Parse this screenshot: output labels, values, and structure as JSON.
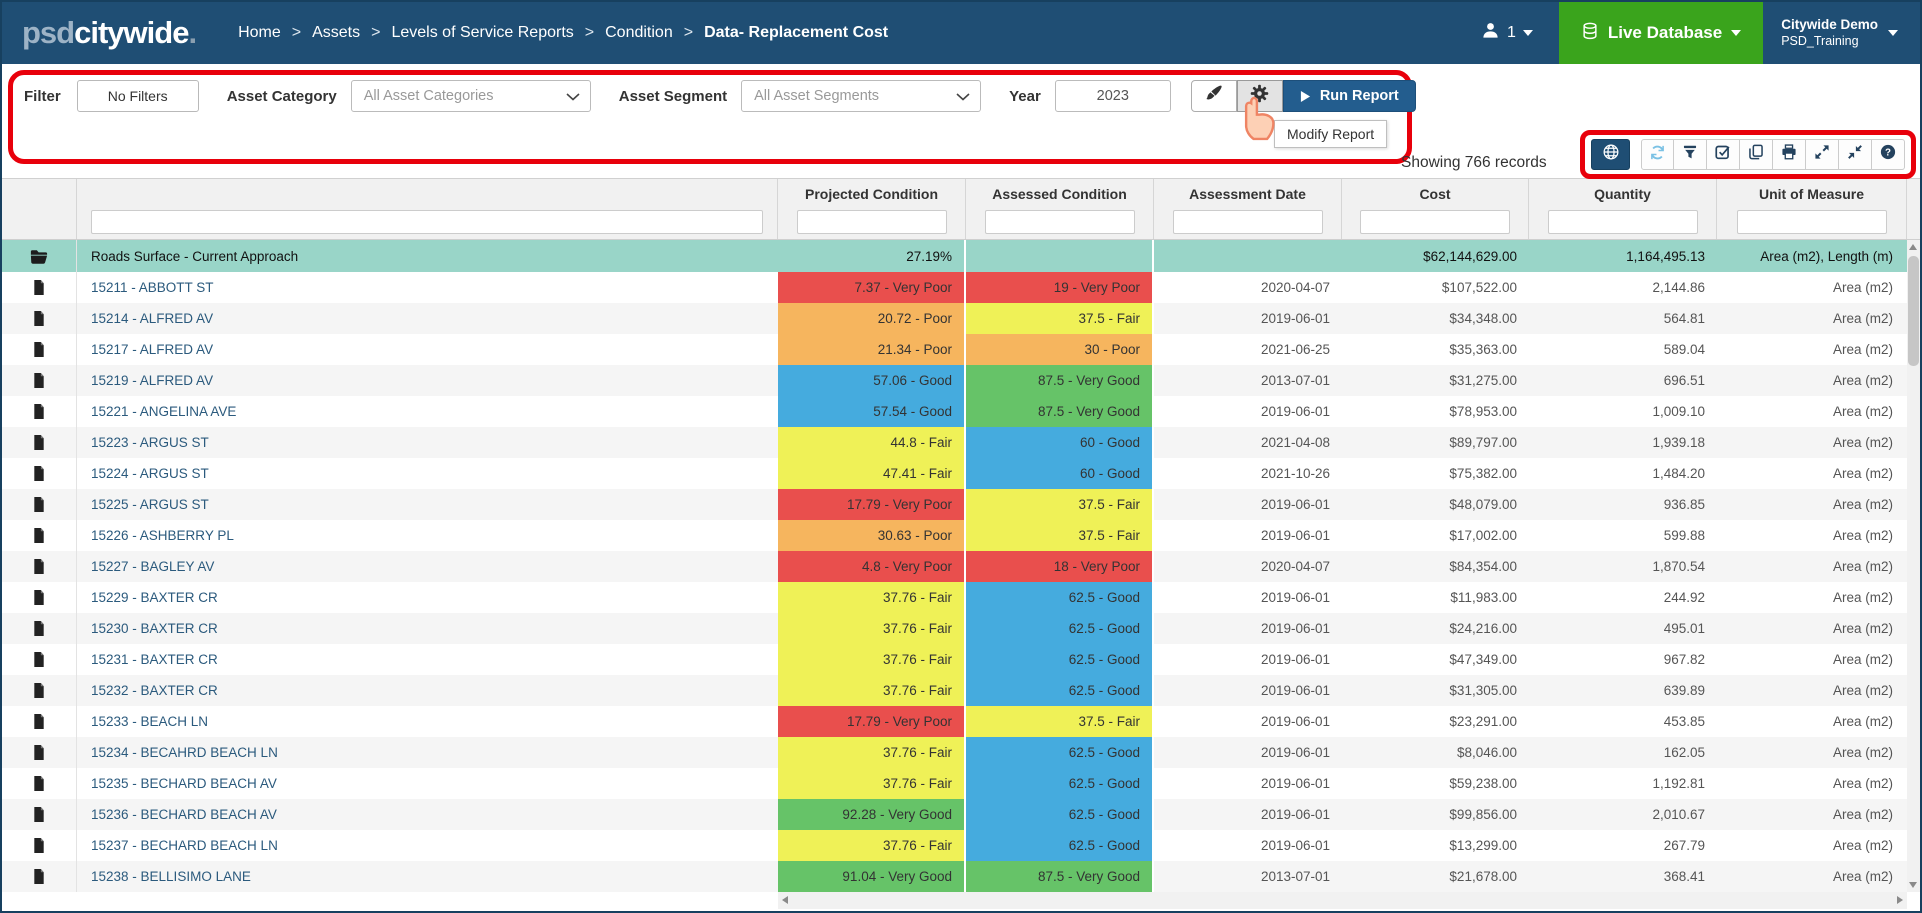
{
  "navbar": {
    "logo_prefix": "psd",
    "logo_main": "citywide",
    "logo_dot": ".",
    "breadcrumbs": [
      "Home",
      "Assets",
      "Levels of Service Reports",
      "Condition",
      "Data- Replacement Cost"
    ],
    "user_count": "1",
    "live_database_label": "Live Database",
    "account_name": "Citywide Demo",
    "account_sub": "PSD_Training"
  },
  "filter_bar": {
    "filter_label": "Filter",
    "no_filters_button": "No Filters",
    "asset_category_label": "Asset Category",
    "asset_category_value": "All Asset Categories",
    "asset_segment_label": "Asset Segment",
    "asset_segment_value": "All Asset Segments",
    "year_label": "Year",
    "year_value": "2023",
    "run_report_label": "Run Report",
    "modify_tooltip": "Modify Report"
  },
  "status": {
    "showing_records": "Showing 766 records"
  },
  "toolbar": {
    "buttons": [
      "globe",
      "refresh",
      "filter",
      "select-check",
      "copy",
      "print",
      "expand",
      "compress",
      "help"
    ]
  },
  "table": {
    "columns": [
      "Projected Condition",
      "Assessed Condition",
      "Assessment Date",
      "Cost",
      "Quantity",
      "Unit of Measure"
    ],
    "condition_colors": {
      "very-poor": "#e94f4d",
      "poor": "#f6b55e",
      "fair": "#eff157",
      "good": "#45abde",
      "very-good": "#66c368"
    },
    "summary_row": {
      "name": "Roads Surface - Current Approach",
      "projected": "27.19%",
      "assessed": "",
      "date": "",
      "cost": "$62,144,629.00",
      "quantity": "1,164,495.13",
      "unit": "Area (m2), Length (m)"
    },
    "rows": [
      {
        "name": "15211 - ABBOTT ST",
        "projected": "7.37 - Very Poor",
        "assessed": "19 - Very Poor",
        "date": "2020-04-07",
        "cost": "$107,522.00",
        "quantity": "2,144.86",
        "unit": "Area (m2)"
      },
      {
        "name": "15214 - ALFRED AV",
        "projected": "20.72 - Poor",
        "assessed": "37.5 - Fair",
        "date": "2019-06-01",
        "cost": "$34,348.00",
        "quantity": "564.81",
        "unit": "Area (m2)"
      },
      {
        "name": "15217 - ALFRED AV",
        "projected": "21.34 - Poor",
        "assessed": "30 - Poor",
        "date": "2021-06-25",
        "cost": "$35,363.00",
        "quantity": "589.04",
        "unit": "Area (m2)"
      },
      {
        "name": "15219 - ALFRED AV",
        "projected": "57.06 - Good",
        "assessed": "87.5 - Very Good",
        "date": "2013-07-01",
        "cost": "$31,275.00",
        "quantity": "696.51",
        "unit": "Area (m2)"
      },
      {
        "name": "15221 - ANGELINA AVE",
        "projected": "57.54 - Good",
        "assessed": "87.5 - Very Good",
        "date": "2019-06-01",
        "cost": "$78,953.00",
        "quantity": "1,009.10",
        "unit": "Area (m2)"
      },
      {
        "name": "15223 - ARGUS ST",
        "projected": "44.8 - Fair",
        "assessed": "60 - Good",
        "date": "2021-04-08",
        "cost": "$89,797.00",
        "quantity": "1,939.18",
        "unit": "Area (m2)"
      },
      {
        "name": "15224 - ARGUS ST",
        "projected": "47.41 - Fair",
        "assessed": "60 - Good",
        "date": "2021-10-26",
        "cost": "$75,382.00",
        "quantity": "1,484.20",
        "unit": "Area (m2)"
      },
      {
        "name": "15225 - ARGUS ST",
        "projected": "17.79 - Very Poor",
        "assessed": "37.5 - Fair",
        "date": "2019-06-01",
        "cost": "$48,079.00",
        "quantity": "936.85",
        "unit": "Area (m2)"
      },
      {
        "name": "15226 - ASHBERRY PL",
        "projected": "30.63 - Poor",
        "assessed": "37.5 - Fair",
        "date": "2019-06-01",
        "cost": "$17,002.00",
        "quantity": "599.88",
        "unit": "Area (m2)"
      },
      {
        "name": "15227 - BAGLEY AV",
        "projected": "4.8 - Very Poor",
        "assessed": "18 - Very Poor",
        "date": "2020-04-07",
        "cost": "$84,354.00",
        "quantity": "1,870.54",
        "unit": "Area (m2)"
      },
      {
        "name": "15229 - BAXTER CR",
        "projected": "37.76 - Fair",
        "assessed": "62.5 - Good",
        "date": "2019-06-01",
        "cost": "$11,983.00",
        "quantity": "244.92",
        "unit": "Area (m2)"
      },
      {
        "name": "15230 - BAXTER CR",
        "projected": "37.76 - Fair",
        "assessed": "62.5 - Good",
        "date": "2019-06-01",
        "cost": "$24,216.00",
        "quantity": "495.01",
        "unit": "Area (m2)"
      },
      {
        "name": "15231 - BAXTER CR",
        "projected": "37.76 - Fair",
        "assessed": "62.5 - Good",
        "date": "2019-06-01",
        "cost": "$47,349.00",
        "quantity": "967.82",
        "unit": "Area (m2)"
      },
      {
        "name": "15232 - BAXTER CR",
        "projected": "37.76 - Fair",
        "assessed": "62.5 - Good",
        "date": "2019-06-01",
        "cost": "$31,305.00",
        "quantity": "639.89",
        "unit": "Area (m2)"
      },
      {
        "name": "15233 - BEACH LN",
        "projected": "17.79 - Very Poor",
        "assessed": "37.5 - Fair",
        "date": "2019-06-01",
        "cost": "$23,291.00",
        "quantity": "453.85",
        "unit": "Area (m2)"
      },
      {
        "name": "15234 - BECAHRD BEACH LN",
        "projected": "37.76 - Fair",
        "assessed": "62.5 - Good",
        "date": "2019-06-01",
        "cost": "$8,046.00",
        "quantity": "162.05",
        "unit": "Area (m2)"
      },
      {
        "name": "15235 - BECHARD BEACH AV",
        "projected": "37.76 - Fair",
        "assessed": "62.5 - Good",
        "date": "2019-06-01",
        "cost": "$59,238.00",
        "quantity": "1,192.81",
        "unit": "Area (m2)"
      },
      {
        "name": "15236 - BECHARD BEACH AV",
        "projected": "92.28 - Very Good",
        "assessed": "62.5 - Good",
        "date": "2019-06-01",
        "cost": "$99,856.00",
        "quantity": "2,010.67",
        "unit": "Area (m2)"
      },
      {
        "name": "15237 - BECHARD BEACH LN",
        "projected": "37.76 - Fair",
        "assessed": "62.5 - Good",
        "date": "2019-06-01",
        "cost": "$13,299.00",
        "quantity": "267.79",
        "unit": "Area (m2)"
      },
      {
        "name": "15238 - BELLISIMO LANE",
        "projected": "91.04 - Very Good",
        "assessed": "87.5 - Very Good",
        "date": "2013-07-01",
        "cost": "$21,678.00",
        "quantity": "368.41",
        "unit": "Area (m2)"
      }
    ]
  }
}
